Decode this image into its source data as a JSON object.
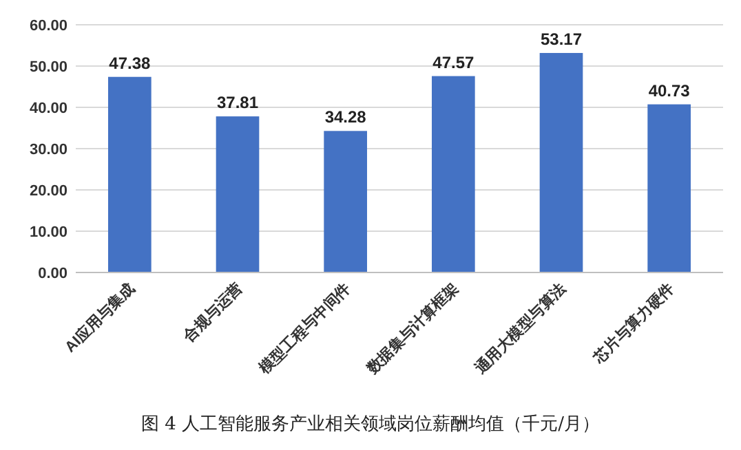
{
  "chart_data": {
    "type": "bar",
    "title": "图 4   人工智能服务产业相关领域岗位薪酬均值（千元/月）",
    "categories": [
      "AI应用与集成",
      "合规与运营",
      "模型工程与中间件",
      "数据集与计算框架",
      "通用大模型与算法",
      "芯片与算力硬件"
    ],
    "values": [
      47.38,
      37.81,
      34.28,
      47.57,
      53.17,
      40.73
    ],
    "color": "#4472c4",
    "ylim": [
      0,
      60
    ],
    "yticks": [
      {
        "value": 0,
        "label": "0.00"
      },
      {
        "value": 10,
        "label": "10.00"
      },
      {
        "value": 20,
        "label": "20.00"
      },
      {
        "value": 30,
        "label": "30.00"
      },
      {
        "value": 40,
        "label": "40.00"
      },
      {
        "value": 50,
        "label": "50.00"
      },
      {
        "value": 60,
        "label": "60.00"
      }
    ],
    "grid": "y",
    "data_labels": true
  }
}
